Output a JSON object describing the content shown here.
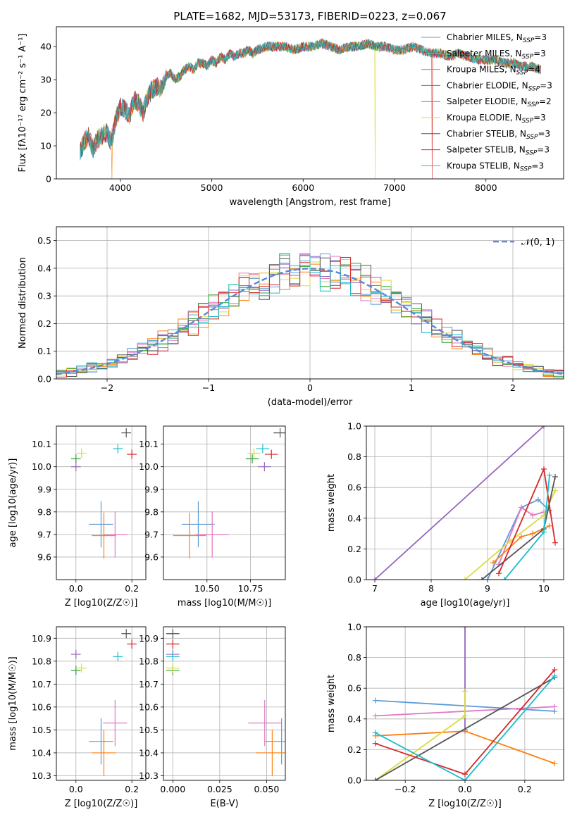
{
  "figure_title": "PLATE=1682, MJD=53173, FIBERID=0223, z=0.067",
  "legend_entries": [
    {
      "label": "Chabrier MILES, N",
      "sub": "SSP",
      "tail": "=3",
      "color": "#5b9bd5"
    },
    {
      "label": "Salpeter MILES, N",
      "sub": "SSP",
      "tail": "=3",
      "color": "#e377c2"
    },
    {
      "label": "Kroupa MILES, N",
      "sub": "SSP",
      "tail": "=4",
      "color": "#ff7f0e"
    },
    {
      "label": "Chabrier ELODIE, N",
      "sub": "SSP",
      "tail": "=3",
      "color": "#2ca02c"
    },
    {
      "label": "Salpeter ELODIE, N",
      "sub": "SSP",
      "tail": "=2",
      "color": "#9467bd"
    },
    {
      "label": "Kroupa ELODIE, N",
      "sub": "SSP",
      "tail": "=3",
      "color": "#dbdb3d"
    },
    {
      "label": "Chabrier STELIB, N",
      "sub": "SSP",
      "tail": "=3",
      "color": "#555555"
    },
    {
      "label": "Salpeter STELIB, N",
      "sub": "SSP",
      "tail": "=3",
      "color": "#d62728"
    },
    {
      "label": "Kroupa STELIB, N",
      "sub": "SSP",
      "tail": "=3",
      "color": "#17becf"
    }
  ],
  "chart_data": [
    {
      "id": "spectrum",
      "type": "line",
      "xlabel": "wavelength [Angstrom, rest frame]",
      "ylabel": "Flux [fλ10⁻¹⁷ erg cm⁻² s⁻¹ A⁻¹]",
      "xlim": [
        3300,
        8850
      ],
      "ylim": [
        0,
        46
      ],
      "xticks": [
        4000,
        5000,
        6000,
        7000,
        8000
      ],
      "yticks": [
        0,
        10,
        20,
        30,
        40
      ],
      "x": [
        3560,
        3600,
        3650,
        3700,
        3750,
        3800,
        3850,
        3900,
        3950,
        4000,
        4050,
        4100,
        4150,
        4200,
        4250,
        4300,
        4350,
        4400,
        4450,
        4500,
        4550,
        4600,
        4650,
        4700,
        4750,
        4800,
        4850,
        4900,
        4950,
        5000,
        5050,
        5100,
        5150,
        5200,
        5250,
        5300,
        5350,
        5400,
        5450,
        5500,
        5600,
        5700,
        5800,
        5900,
        6000,
        6100,
        6200,
        6300,
        6400,
        6500,
        6600,
        6700,
        6800,
        6900,
        7000,
        7100,
        7200,
        7300,
        7400,
        7500,
        7600,
        7700,
        7800,
        7900,
        8000,
        8100,
        8200,
        8300,
        8400,
        8500,
        8600
      ],
      "y": [
        8,
        11,
        13,
        9,
        12,
        13,
        14,
        11,
        18,
        22,
        21,
        19,
        24,
        23,
        20,
        25,
        27,
        28,
        27,
        31,
        32,
        30,
        31,
        33,
        34,
        33,
        35,
        35,
        34,
        36,
        35,
        37,
        36,
        38,
        37,
        38,
        38,
        39,
        38,
        39,
        40,
        40,
        40,
        39,
        40,
        40,
        41,
        40,
        39,
        40,
        40,
        41,
        40,
        40,
        39,
        39,
        40,
        39,
        38,
        38,
        37,
        38,
        37,
        36,
        36,
        36,
        35,
        35,
        34,
        34,
        33
      ]
    },
    {
      "id": "residuals",
      "type": "histogram",
      "xlabel": "(data-model)/error",
      "ylabel": "Normed distribution",
      "xlim": [
        -2.5,
        2.5
      ],
      "ylim": [
        0,
        0.55
      ],
      "xticks": [
        -2,
        -1,
        0,
        1,
        2
      ],
      "yticks": [
        0.0,
        0.1,
        0.2,
        0.3,
        0.4,
        0.5
      ],
      "legend": "𝒩(0, 1)"
    },
    {
      "id": "age-vs-Z",
      "type": "scatter",
      "xlabel": "Z [log10(Z/Z☉)]",
      "ylabel": "age [log10(age/yr)]",
      "xlim": [
        -0.07,
        0.25
      ],
      "ylim": [
        9.5,
        10.18
      ],
      "xticks": [
        0.0,
        0.2
      ],
      "yticks": [
        9.6,
        9.7,
        9.8,
        9.9,
        10.0,
        10.1
      ],
      "points": [
        {
          "x": 0.09,
          "y": 9.745,
          "color": "#5b9bd5"
        },
        {
          "x": 0.14,
          "y": 9.7,
          "color": "#e377c2"
        },
        {
          "x": 0.1,
          "y": 9.695,
          "color": "#ff7f0e"
        },
        {
          "x": 0.0,
          "y": 10.035,
          "color": "#2ca02c"
        },
        {
          "x": 0.0,
          "y": 10.0,
          "color": "#9467bd"
        },
        {
          "x": 0.02,
          "y": 10.06,
          "color": "#dbdb3d"
        },
        {
          "x": 0.18,
          "y": 10.15,
          "color": "#555555"
        },
        {
          "x": 0.2,
          "y": 10.055,
          "color": "#d62728"
        },
        {
          "x": 0.15,
          "y": 10.08,
          "color": "#17becf"
        }
      ]
    },
    {
      "id": "age-vs-mass",
      "type": "scatter",
      "xlabel": "mass [log10(M/M☉)]",
      "ylabel": "",
      "xlim": [
        10.25,
        10.95
      ],
      "ylim": [
        9.5,
        10.18
      ],
      "xticks": [
        10.5,
        10.75
      ],
      "yticks": [
        9.6,
        9.7,
        9.8,
        9.9,
        10.0,
        10.1
      ],
      "points": [
        {
          "x": 10.45,
          "y": 9.745,
          "color": "#5b9bd5"
        },
        {
          "x": 10.53,
          "y": 9.7,
          "color": "#e377c2"
        },
        {
          "x": 10.4,
          "y": 9.695,
          "color": "#ff7f0e"
        },
        {
          "x": 10.76,
          "y": 10.035,
          "color": "#2ca02c"
        },
        {
          "x": 10.83,
          "y": 10.0,
          "color": "#9467bd"
        },
        {
          "x": 10.77,
          "y": 10.06,
          "color": "#dbdb3d"
        },
        {
          "x": 10.92,
          "y": 10.15,
          "color": "#555555"
        },
        {
          "x": 10.87,
          "y": 10.055,
          "color": "#d62728"
        },
        {
          "x": 10.82,
          "y": 10.08,
          "color": "#17becf"
        }
      ]
    },
    {
      "id": "weight-vs-age",
      "type": "line",
      "xlabel": "age [log10(age/yr)]",
      "ylabel": "mass weight",
      "xlim": [
        6.85,
        10.35
      ],
      "ylim": [
        0,
        1
      ],
      "xticks": [
        7,
        8,
        9,
        10
      ],
      "yticks": [
        0.0,
        0.2,
        0.4,
        0.6,
        0.8,
        1.0
      ],
      "series": [
        {
          "color": "#5b9bd5",
          "x": [
            9.0,
            9.6,
            9.9,
            10.1
          ],
          "y": [
            0.0,
            0.47,
            0.52,
            0.45
          ]
        },
        {
          "color": "#e377c2",
          "x": [
            9.2,
            9.6,
            9.8,
            10.0
          ],
          "y": [
            0.1,
            0.47,
            0.42,
            0.44
          ]
        },
        {
          "color": "#ff7f0e",
          "x": [
            9.1,
            9.6,
            9.8,
            10.1
          ],
          "y": [
            0.11,
            0.28,
            0.3,
            0.35
          ]
        },
        {
          "color": "#9467bd",
          "x": [
            7.0,
            10.0
          ],
          "y": [
            0.0,
            1.0
          ]
        },
        {
          "color": "#dbdb3d",
          "x": [
            8.6,
            9.4,
            10.0,
            10.2
          ],
          "y": [
            0.0,
            0.25,
            0.42,
            0.58
          ]
        },
        {
          "color": "#555555",
          "x": [
            8.9,
            10.0,
            10.2
          ],
          "y": [
            0.0,
            0.33,
            0.67
          ]
        },
        {
          "color": "#d62728",
          "x": [
            9.2,
            10.0,
            10.2
          ],
          "y": [
            0.04,
            0.72,
            0.24
          ]
        },
        {
          "color": "#17becf",
          "x": [
            9.3,
            10.0,
            10.1
          ],
          "y": [
            0.0,
            0.31,
            0.68
          ]
        }
      ]
    },
    {
      "id": "mass-vs-Z",
      "type": "scatter",
      "xlabel": "Z [log10(Z/Z☉)]",
      "ylabel": "mass [log10(M/M☉)]",
      "xlim": [
        -0.07,
        0.25
      ],
      "ylim": [
        10.28,
        10.95
      ],
      "xticks": [
        0.0,
        0.2
      ],
      "yticks": [
        10.3,
        10.4,
        10.5,
        10.6,
        10.7,
        10.8,
        10.9
      ],
      "points": [
        {
          "x": 0.09,
          "y": 10.45,
          "color": "#5b9bd5"
        },
        {
          "x": 0.14,
          "y": 10.53,
          "color": "#e377c2"
        },
        {
          "x": 0.1,
          "y": 10.4,
          "color": "#ff7f0e"
        },
        {
          "x": 0.0,
          "y": 10.76,
          "color": "#2ca02c"
        },
        {
          "x": 0.0,
          "y": 10.83,
          "color": "#9467bd"
        },
        {
          "x": 0.02,
          "y": 10.77,
          "color": "#dbdb3d"
        },
        {
          "x": 0.18,
          "y": 10.92,
          "color": "#555555"
        },
        {
          "x": 0.2,
          "y": 10.875,
          "color": "#d62728"
        },
        {
          "x": 0.15,
          "y": 10.82,
          "color": "#17becf"
        }
      ]
    },
    {
      "id": "mass-vs-EBV",
      "type": "scatter",
      "xlabel": "E(B-V)",
      "ylabel": "",
      "xlim": [
        -0.005,
        0.06
      ],
      "ylim": [
        10.28,
        10.95
      ],
      "xticks": [
        0.0,
        0.025,
        0.05
      ],
      "yticks": [
        10.3,
        10.4,
        10.5,
        10.6,
        10.7,
        10.8,
        10.9
      ],
      "points": [
        {
          "x": 0.058,
          "y": 10.45,
          "color": "#5b9bd5"
        },
        {
          "x": 0.049,
          "y": 10.53,
          "color": "#e377c2"
        },
        {
          "x": 0.053,
          "y": 10.4,
          "color": "#ff7f0e"
        },
        {
          "x": 0.0,
          "y": 10.76,
          "color": "#2ca02c"
        },
        {
          "x": 0.0,
          "y": 10.83,
          "color": "#9467bd"
        },
        {
          "x": 0.0,
          "y": 10.77,
          "color": "#dbdb3d"
        },
        {
          "x": 0.0,
          "y": 10.92,
          "color": "#555555"
        },
        {
          "x": 0.0,
          "y": 10.875,
          "color": "#d62728"
        },
        {
          "x": 0.0,
          "y": 10.82,
          "color": "#17becf"
        }
      ]
    },
    {
      "id": "weight-vs-Z",
      "type": "line",
      "xlabel": "Z [log10(Z/Z☉)]",
      "ylabel": "mass weight",
      "xlim": [
        -0.33,
        0.33
      ],
      "ylim": [
        0,
        1
      ],
      "xticks": [
        -0.2,
        0.0,
        0.2
      ],
      "yticks": [
        0.0,
        0.2,
        0.4,
        0.6,
        0.8,
        1.0
      ],
      "series": [
        {
          "color": "#5b9bd5",
          "x": [
            -0.3,
            0.3
          ],
          "y": [
            0.52,
            0.45
          ]
        },
        {
          "color": "#e377c2",
          "x": [
            -0.3,
            0.3
          ],
          "y": [
            0.42,
            0.48
          ]
        },
        {
          "color": "#ff7f0e",
          "x": [
            -0.3,
            0.0,
            0.3
          ],
          "y": [
            0.29,
            0.32,
            0.11
          ]
        },
        {
          "color": "#9467bd",
          "x": [
            0.0,
            0.0
          ],
          "y": [
            0.33,
            1.0
          ]
        },
        {
          "color": "#dbdb3d",
          "x": [
            -0.3,
            0.0,
            0.0
          ],
          "y": [
            0.0,
            0.42,
            0.58
          ]
        },
        {
          "color": "#555555",
          "x": [
            -0.3,
            0.3
          ],
          "y": [
            0.0,
            0.67
          ]
        },
        {
          "color": "#d62728",
          "x": [
            -0.3,
            0.0,
            0.3
          ],
          "y": [
            0.24,
            0.04,
            0.72
          ]
        },
        {
          "color": "#17becf",
          "x": [
            -0.3,
            0.0,
            0.3
          ],
          "y": [
            0.31,
            0.0,
            0.68
          ]
        }
      ]
    }
  ]
}
